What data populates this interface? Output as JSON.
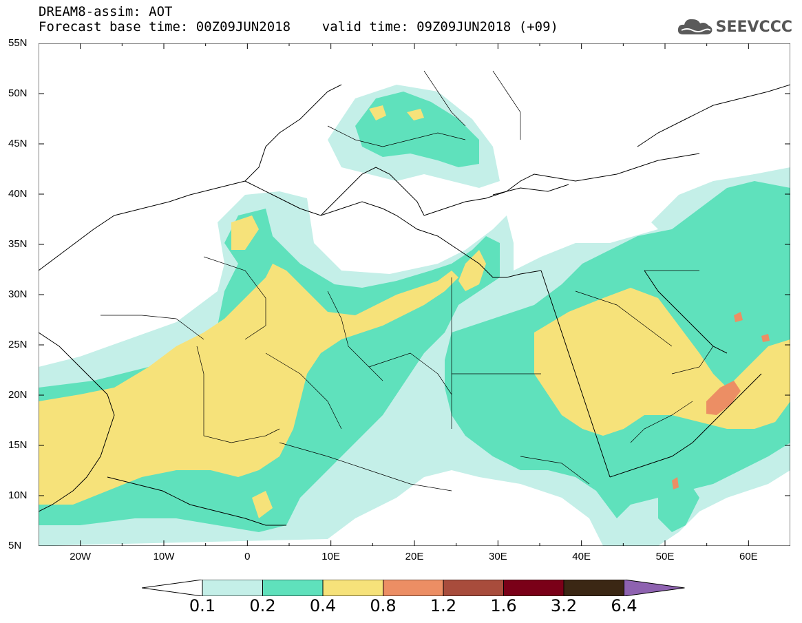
{
  "header": {
    "line1": "DREAM8-assim: AOT",
    "line2": "Forecast base time: 00Z09JUN2018    valid time: 09Z09JUN2018 (+09)"
  },
  "logo": {
    "text": "SEEVCCC",
    "icon": "cloud-icon"
  },
  "axes": {
    "lat_labels": [
      "55N",
      "50N",
      "45N",
      "40N",
      "35N",
      "30N",
      "25N",
      "20N",
      "15N",
      "10N",
      "5N"
    ],
    "lon_labels": [
      "20W",
      "10W",
      "0",
      "10E",
      "20E",
      "30E",
      "40E",
      "50E",
      "60E"
    ]
  },
  "colorbar": {
    "labels": [
      "0.1",
      "0.2",
      "0.4",
      "0.8",
      "1.2",
      "1.6",
      "3.2",
      "6.4"
    ],
    "colors": [
      "#ffffff",
      "#c4efe8",
      "#5fe1bc",
      "#f6e27a",
      "#ec8e64",
      "#a84c3c",
      "#7a0018",
      "#3b2714",
      "#8e62b0"
    ]
  },
  "colors": {
    "low": "#c4efe8",
    "mid": "#5fe1bc",
    "high": "#f6e27a",
    "veryhigh": "#ec8e64"
  }
}
